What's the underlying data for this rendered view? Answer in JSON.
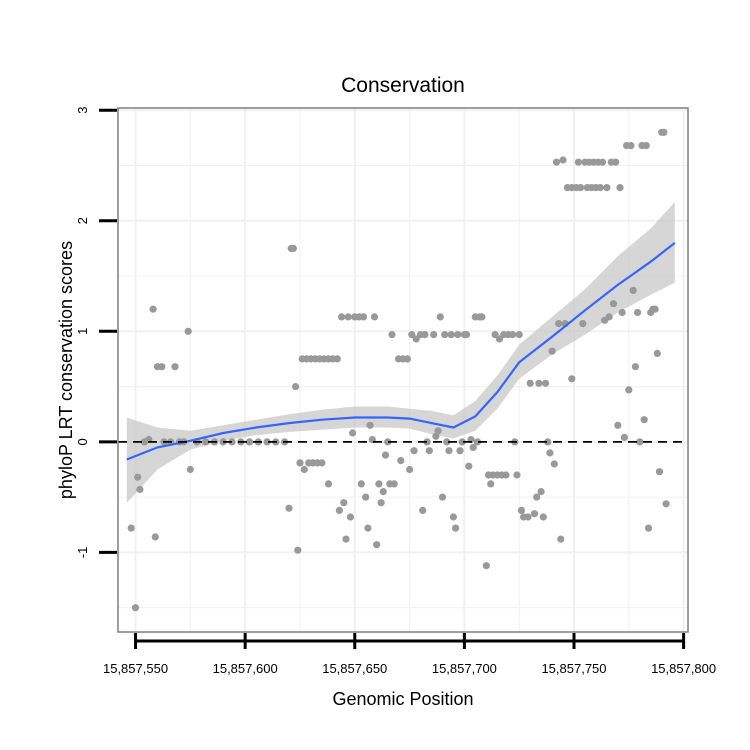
{
  "chart_data": {
    "type": "scatter",
    "title": "Conservation",
    "xlabel": "Genomic Position",
    "ylabel": "phyloP LRT conservation scores",
    "xlim": [
      15857542,
      15857802
    ],
    "ylim": [
      -1.72,
      3.02
    ],
    "grid": true,
    "x_ticks": [
      15857550,
      15857600,
      15857650,
      15857700,
      15857750,
      15857800
    ],
    "x_tick_labels": [
      "15,857,550",
      "15,857,600",
      "15,857,650",
      "15,857,700",
      "15,857,750",
      "15,857,800"
    ],
    "y_ticks": [
      -1,
      0,
      1,
      2,
      3
    ],
    "y_tick_labels": [
      "-1",
      "0",
      "1",
      "2",
      "3"
    ],
    "reference_line": {
      "y": 0,
      "style": "dashed"
    },
    "colors": {
      "points": "#999999",
      "smooth": "#3366ff",
      "ribbon": "#c8c8c8",
      "grid": "#f0f0f0",
      "frame": "#7f7f7f"
    },
    "points": [
      [
        15857548,
        -0.78
      ],
      [
        15857550,
        -1.5
      ],
      [
        15857551,
        -0.32
      ],
      [
        15857552,
        -0.43
      ],
      [
        15857554,
        0.0
      ],
      [
        15857556,
        0.02
      ],
      [
        15857558,
        1.2
      ],
      [
        15857559,
        -0.86
      ],
      [
        15857560,
        0.68
      ],
      [
        15857562,
        0.68
      ],
      [
        15857563,
        0.0
      ],
      [
        15857566,
        0.0
      ],
      [
        15857568,
        0.68
      ],
      [
        15857570,
        0.0
      ],
      [
        15857572,
        0.0
      ],
      [
        15857574,
        1.0
      ],
      [
        15857575,
        -0.25
      ],
      [
        15857578,
        0.0
      ],
      [
        15857582,
        0.0
      ],
      [
        15857586,
        0.0
      ],
      [
        15857590,
        0.0
      ],
      [
        15857594,
        0.0
      ],
      [
        15857598,
        0.0
      ],
      [
        15857602,
        0.0
      ],
      [
        15857606,
        0.0
      ],
      [
        15857610,
        0.0
      ],
      [
        15857614,
        0.0
      ],
      [
        15857618,
        0.0
      ],
      [
        15857620,
        -0.6
      ],
      [
        15857621,
        1.75
      ],
      [
        15857622,
        1.75
      ],
      [
        15857623,
        0.5
      ],
      [
        15857624,
        -0.98
      ],
      [
        15857625,
        -0.19
      ],
      [
        15857626,
        0.75
      ],
      [
        15857627,
        -0.25
      ],
      [
        15857628,
        0.75
      ],
      [
        15857629,
        -0.19
      ],
      [
        15857630,
        0.75
      ],
      [
        15857631,
        -0.19
      ],
      [
        15857632,
        0.75
      ],
      [
        15857633,
        -0.19
      ],
      [
        15857634,
        0.75
      ],
      [
        15857635,
        -0.19
      ],
      [
        15857636,
        0.75
      ],
      [
        15857638,
        -0.38
      ],
      [
        15857638,
        0.75
      ],
      [
        15857640,
        0.75
      ],
      [
        15857642,
        0.75
      ],
      [
        15857643,
        -0.62
      ],
      [
        15857644,
        1.13
      ],
      [
        15857645,
        -0.55
      ],
      [
        15857646,
        -0.88
      ],
      [
        15857647,
        1.13
      ],
      [
        15857648,
        -0.68
      ],
      [
        15857649,
        0.08
      ],
      [
        15857650,
        1.13
      ],
      [
        15857652,
        1.13
      ],
      [
        15857653,
        -0.38
      ],
      [
        15857654,
        1.13
      ],
      [
        15857655,
        -0.5
      ],
      [
        15857656,
        -0.78
      ],
      [
        15857657,
        0.15
      ],
      [
        15857658,
        0.02
      ],
      [
        15857659,
        1.13
      ],
      [
        15857660,
        -0.93
      ],
      [
        15857661,
        -0.38
      ],
      [
        15857662,
        -0.55
      ],
      [
        15857663,
        -0.45
      ],
      [
        15857664,
        -0.12
      ],
      [
        15857665,
        0.0
      ],
      [
        15857666,
        -0.38
      ],
      [
        15857667,
        0.97
      ],
      [
        15857668,
        -0.38
      ],
      [
        15857670,
        0.75
      ],
      [
        15857671,
        -0.17
      ],
      [
        15857672,
        0.75
      ],
      [
        15857674,
        0.75
      ],
      [
        15857675,
        -0.25
      ],
      [
        15857676,
        0.97
      ],
      [
        15857677,
        -0.08
      ],
      [
        15857678,
        0.93
      ],
      [
        15857680,
        0.97
      ],
      [
        15857681,
        -0.62
      ],
      [
        15857682,
        0.97
      ],
      [
        15857683,
        0.0
      ],
      [
        15857684,
        -0.08
      ],
      [
        15857686,
        0.97
      ],
      [
        15857687,
        0.05
      ],
      [
        15857688,
        0.1
      ],
      [
        15857689,
        1.13
      ],
      [
        15857690,
        -0.5
      ],
      [
        15857691,
        0.97
      ],
      [
        15857692,
        0.0
      ],
      [
        15857693,
        -0.08
      ],
      [
        15857694,
        0.97
      ],
      [
        15857695,
        -0.68
      ],
      [
        15857696,
        -0.78
      ],
      [
        15857697,
        0.97
      ],
      [
        15857698,
        -0.08
      ],
      [
        15857699,
        0.0
      ],
      [
        15857700,
        0.97
      ],
      [
        15857701,
        0.97
      ],
      [
        15857702,
        -0.22
      ],
      [
        15857703,
        0.02
      ],
      [
        15857704,
        -0.05
      ],
      [
        15857705,
        1.13
      ],
      [
        15857706,
        0.0
      ],
      [
        15857707,
        1.13
      ],
      [
        15857708,
        1.13
      ],
      [
        15857710,
        -1.12
      ],
      [
        15857711,
        -0.3
      ],
      [
        15857712,
        -0.38
      ],
      [
        15857713,
        -0.3
      ],
      [
        15857714,
        0.97
      ],
      [
        15857715,
        -0.3
      ],
      [
        15857716,
        0.93
      ],
      [
        15857717,
        -0.3
      ],
      [
        15857718,
        0.97
      ],
      [
        15857719,
        -0.3
      ],
      [
        15857720,
        0.97
      ],
      [
        15857722,
        0.97
      ],
      [
        15857723,
        0.0
      ],
      [
        15857724,
        -0.3
      ],
      [
        15857725,
        0.97
      ],
      [
        15857726,
        -0.62
      ],
      [
        15857727,
        -0.68
      ],
      [
        15857729,
        -0.68
      ],
      [
        15857730,
        0.53
      ],
      [
        15857732,
        -0.65
      ],
      [
        15857733,
        -0.5
      ],
      [
        15857734,
        0.53
      ],
      [
        15857735,
        -0.45
      ],
      [
        15857736,
        -0.68
      ],
      [
        15857737,
        0.53
      ],
      [
        15857738,
        0.0
      ],
      [
        15857739,
        -0.1
      ],
      [
        15857740,
        0.82
      ],
      [
        15857741,
        -0.2
      ],
      [
        15857742,
        2.53
      ],
      [
        15857743,
        1.07
      ],
      [
        15857744,
        -0.88
      ],
      [
        15857745,
        2.55
      ],
      [
        15857746,
        1.07
      ],
      [
        15857747,
        2.3
      ],
      [
        15857749,
        0.57
      ],
      [
        15857749,
        2.3
      ],
      [
        15857751,
        2.3
      ],
      [
        15857752,
        2.53
      ],
      [
        15857753,
        2.3
      ],
      [
        15857754,
        1.07
      ],
      [
        15857755,
        2.53
      ],
      [
        15857756,
        2.3
      ],
      [
        15857757,
        2.53
      ],
      [
        15857758,
        2.3
      ],
      [
        15857759,
        2.53
      ],
      [
        15857760,
        2.3
      ],
      [
        15857761,
        2.53
      ],
      [
        15857762,
        2.3
      ],
      [
        15857763,
        2.53
      ],
      [
        15857764,
        1.1
      ],
      [
        15857765,
        2.3
      ],
      [
        15857766,
        1.13
      ],
      [
        15857767,
        2.53
      ],
      [
        15857768,
        1.25
      ],
      [
        15857769,
        2.53
      ],
      [
        15857770,
        0.15
      ],
      [
        15857771,
        2.3
      ],
      [
        15857772,
        1.17
      ],
      [
        15857773,
        0.04
      ],
      [
        15857774,
        2.68
      ],
      [
        15857775,
        0.47
      ],
      [
        15857776,
        2.68
      ],
      [
        15857777,
        1.37
      ],
      [
        15857778,
        0.68
      ],
      [
        15857779,
        1.17
      ],
      [
        15857780,
        0.0
      ],
      [
        15857781,
        2.68
      ],
      [
        15857782,
        0.2
      ],
      [
        15857783,
        2.68
      ],
      [
        15857784,
        -0.78
      ],
      [
        15857785,
        1.17
      ],
      [
        15857786,
        1.2
      ],
      [
        15857787,
        1.2
      ],
      [
        15857788,
        0.8
      ],
      [
        15857789,
        -0.27
      ],
      [
        15857790,
        2.8
      ],
      [
        15857791,
        2.8
      ],
      [
        15857792,
        -0.56
      ]
    ],
    "smooth_line": {
      "x": [
        15857546,
        15857560,
        15857575,
        15857590,
        15857605,
        15857620,
        15857635,
        15857650,
        15857665,
        15857675,
        15857685,
        15857695,
        15857705,
        15857715,
        15857725,
        15857740,
        15857755,
        15857770,
        15857785,
        15857796
      ],
      "y": [
        -0.16,
        -0.05,
        0.01,
        0.08,
        0.13,
        0.17,
        0.2,
        0.22,
        0.22,
        0.21,
        0.17,
        0.13,
        0.23,
        0.45,
        0.72,
        0.95,
        1.19,
        1.42,
        1.63,
        1.8
      ],
      "lower": [
        -0.55,
        -0.25,
        -0.07,
        0.01,
        0.06,
        0.09,
        0.11,
        0.13,
        0.13,
        0.12,
        0.07,
        0.03,
        0.1,
        0.3,
        0.57,
        0.79,
        0.97,
        1.17,
        1.33,
        1.44
      ],
      "upper": [
        0.22,
        0.13,
        0.1,
        0.15,
        0.2,
        0.25,
        0.29,
        0.32,
        0.32,
        0.3,
        0.28,
        0.24,
        0.37,
        0.6,
        0.88,
        1.13,
        1.38,
        1.68,
        1.93,
        2.17
      ]
    }
  }
}
